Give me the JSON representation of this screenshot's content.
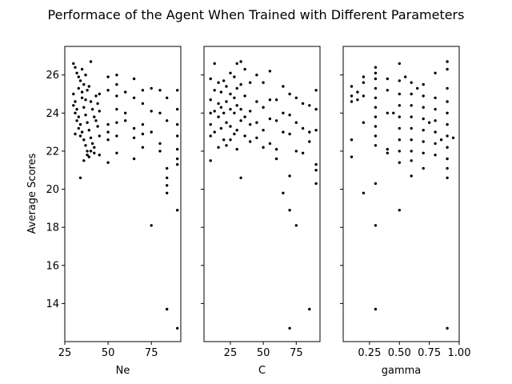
{
  "figure": {
    "title": "Performace of the Agent When Trained with Different Parameters"
  },
  "chart_data": {
    "type": "scatter",
    "title": "Performace of the Agent When Trained with Different Parameters",
    "ylabel": "Average Scores",
    "ylim": [
      12,
      27.5
    ],
    "yticks": [
      14,
      16,
      18,
      20,
      22,
      24,
      26
    ],
    "shared_y": true,
    "marker_color": "#000000",
    "panels": [
      {
        "xlabel": "Ne",
        "xlim": [
          25,
          92
        ],
        "xticks": [
          25,
          50,
          75
        ],
        "points": [
          [
            30,
            26.6
          ],
          [
            31,
            26.4
          ],
          [
            32,
            26.1
          ],
          [
            33,
            25.9
          ],
          [
            34,
            25.7
          ],
          [
            35,
            26.3
          ],
          [
            36,
            25.5
          ],
          [
            37,
            26.0
          ],
          [
            38,
            25.2
          ],
          [
            40,
            26.7
          ],
          [
            30,
            25.0
          ],
          [
            31,
            24.6
          ],
          [
            32,
            24.2
          ],
          [
            33,
            23.8
          ],
          [
            34,
            23.4
          ],
          [
            35,
            23.0
          ],
          [
            36,
            22.6
          ],
          [
            37,
            22.3
          ],
          [
            38,
            22.0
          ],
          [
            39,
            21.7
          ],
          [
            30,
            24.4
          ],
          [
            31,
            24.0
          ],
          [
            32,
            23.6
          ],
          [
            33,
            23.2
          ],
          [
            34,
            22.8
          ],
          [
            35,
            24.8
          ],
          [
            36,
            24.3
          ],
          [
            37,
            23.9
          ],
          [
            38,
            23.5
          ],
          [
            39,
            23.1
          ],
          [
            40,
            24.6
          ],
          [
            41,
            24.2
          ],
          [
            42,
            23.8
          ],
          [
            43,
            24.9
          ],
          [
            44,
            24.5
          ],
          [
            40,
            22.7
          ],
          [
            41,
            22.4
          ],
          [
            42,
            22.2
          ],
          [
            43,
            23.6
          ],
          [
            44,
            23.3
          ],
          [
            31,
            22.9
          ],
          [
            33,
            25.3
          ],
          [
            35,
            25.1
          ],
          [
            37,
            24.7
          ],
          [
            39,
            25.4
          ],
          [
            34,
            20.6
          ],
          [
            36,
            21.5
          ],
          [
            38,
            21.8
          ],
          [
            40,
            22.0
          ],
          [
            42,
            21.9
          ],
          [
            45,
            25.0
          ],
          [
            45,
            24.1
          ],
          [
            45,
            22.8
          ],
          [
            45,
            21.8
          ],
          [
            50,
            25.9
          ],
          [
            50,
            25.2
          ],
          [
            50,
            23.4
          ],
          [
            50,
            23.0
          ],
          [
            50,
            22.6
          ],
          [
            50,
            21.4
          ],
          [
            55,
            26.0
          ],
          [
            55,
            25.5
          ],
          [
            55,
            24.9
          ],
          [
            55,
            24.2
          ],
          [
            55,
            23.5
          ],
          [
            55,
            22.8
          ],
          [
            55,
            21.9
          ],
          [
            60,
            25.1
          ],
          [
            60,
            24.0
          ],
          [
            60,
            23.6
          ],
          [
            65,
            25.8
          ],
          [
            65,
            24.8
          ],
          [
            65,
            23.2
          ],
          [
            65,
            22.7
          ],
          [
            65,
            21.6
          ],
          [
            70,
            25.2
          ],
          [
            70,
            24.5
          ],
          [
            70,
            23.4
          ],
          [
            70,
            22.9
          ],
          [
            70,
            22.2
          ],
          [
            75,
            25.3
          ],
          [
            75,
            24.1
          ],
          [
            75,
            23.0
          ],
          [
            75,
            18.1
          ],
          [
            80,
            25.2
          ],
          [
            80,
            24.0
          ],
          [
            80,
            22.4
          ],
          [
            80,
            22.0
          ],
          [
            84,
            24.8
          ],
          [
            84,
            23.6
          ],
          [
            84,
            21.1
          ],
          [
            84,
            20.6
          ],
          [
            84,
            20.2
          ],
          [
            84,
            19.8
          ],
          [
            84,
            13.7
          ],
          [
            90,
            25.2
          ],
          [
            90,
            24.2
          ],
          [
            90,
            23.4
          ],
          [
            90,
            22.8
          ],
          [
            90,
            22.1
          ],
          [
            90,
            21.6
          ],
          [
            90,
            21.3
          ],
          [
            90,
            18.9
          ],
          [
            90,
            12.7
          ]
        ]
      },
      {
        "xlabel": "C",
        "xlim": [
          5,
          93
        ],
        "xticks": [
          25,
          50,
          75
        ],
        "points": [
          [
            10,
            25.8
          ],
          [
            10,
            24.7
          ],
          [
            10,
            24.0
          ],
          [
            10,
            23.4
          ],
          [
            10,
            22.8
          ],
          [
            10,
            21.5
          ],
          [
            13,
            26.6
          ],
          [
            13,
            25.2
          ],
          [
            13,
            24.1
          ],
          [
            13,
            23.0
          ],
          [
            16,
            25.6
          ],
          [
            16,
            24.5
          ],
          [
            16,
            23.8
          ],
          [
            16,
            22.2
          ],
          [
            18,
            25.1
          ],
          [
            18,
            24.3
          ],
          [
            18,
            23.2
          ],
          [
            20,
            25.7
          ],
          [
            20,
            24.0
          ],
          [
            20,
            22.6
          ],
          [
            22,
            25.4
          ],
          [
            22,
            24.6
          ],
          [
            22,
            23.5
          ],
          [
            22,
            22.3
          ],
          [
            25,
            26.1
          ],
          [
            25,
            25.0
          ],
          [
            25,
            24.2
          ],
          [
            25,
            23.3
          ],
          [
            25,
            22.6
          ],
          [
            28,
            25.9
          ],
          [
            28,
            24.8
          ],
          [
            28,
            24.0
          ],
          [
            28,
            22.9
          ],
          [
            30,
            26.6
          ],
          [
            30,
            25.3
          ],
          [
            30,
            24.4
          ],
          [
            30,
            23.1
          ],
          [
            30,
            22.1
          ],
          [
            33,
            26.7
          ],
          [
            33,
            25.5
          ],
          [
            33,
            24.2
          ],
          [
            33,
            23.6
          ],
          [
            33,
            20.6
          ],
          [
            36,
            26.3
          ],
          [
            36,
            24.9
          ],
          [
            36,
            23.8
          ],
          [
            36,
            22.8
          ],
          [
            40,
            25.6
          ],
          [
            40,
            24.1
          ],
          [
            40,
            23.4
          ],
          [
            40,
            22.5
          ],
          [
            45,
            26.0
          ],
          [
            45,
            24.6
          ],
          [
            45,
            23.5
          ],
          [
            45,
            22.7
          ],
          [
            50,
            25.6
          ],
          [
            50,
            24.3
          ],
          [
            50,
            23.1
          ],
          [
            50,
            22.2
          ],
          [
            55,
            26.2
          ],
          [
            55,
            24.7
          ],
          [
            55,
            23.7
          ],
          [
            55,
            22.4
          ],
          [
            60,
            24.7
          ],
          [
            60,
            23.6
          ],
          [
            60,
            22.1
          ],
          [
            60,
            21.6
          ],
          [
            65,
            25.4
          ],
          [
            65,
            24.0
          ],
          [
            65,
            23.0
          ],
          [
            65,
            19.8
          ],
          [
            70,
            25.0
          ],
          [
            70,
            23.9
          ],
          [
            70,
            22.9
          ],
          [
            70,
            20.7
          ],
          [
            70,
            18.9
          ],
          [
            70,
            12.7
          ],
          [
            75,
            24.8
          ],
          [
            75,
            23.5
          ],
          [
            75,
            22.0
          ],
          [
            75,
            18.1
          ],
          [
            80,
            24.5
          ],
          [
            80,
            23.2
          ],
          [
            80,
            21.9
          ],
          [
            85,
            24.4
          ],
          [
            85,
            23.0
          ],
          [
            85,
            22.5
          ],
          [
            85,
            13.7
          ],
          [
            90,
            25.2
          ],
          [
            90,
            24.2
          ],
          [
            90,
            23.1
          ],
          [
            90,
            21.3
          ],
          [
            90,
            21.0
          ],
          [
            90,
            20.3
          ]
        ]
      },
      {
        "xlabel": "gamma",
        "xlim": [
          0.03,
          1.0
        ],
        "xticks": [
          0.25,
          0.5,
          0.75,
          1.0
        ],
        "points": [
          [
            0.1,
            25.4
          ],
          [
            0.1,
            24.9
          ],
          [
            0.1,
            24.6
          ],
          [
            0.1,
            22.6
          ],
          [
            0.1,
            21.7
          ],
          [
            0.15,
            25.1
          ],
          [
            0.15,
            24.7
          ],
          [
            0.2,
            25.9
          ],
          [
            0.2,
            25.6
          ],
          [
            0.2,
            24.9
          ],
          [
            0.2,
            23.5
          ],
          [
            0.2,
            19.8
          ],
          [
            0.3,
            26.4
          ],
          [
            0.3,
            26.1
          ],
          [
            0.3,
            25.8
          ],
          [
            0.3,
            25.3
          ],
          [
            0.3,
            24.8
          ],
          [
            0.3,
            24.3
          ],
          [
            0.3,
            23.8
          ],
          [
            0.3,
            23.3
          ],
          [
            0.3,
            22.8
          ],
          [
            0.3,
            22.3
          ],
          [
            0.3,
            20.3
          ],
          [
            0.3,
            18.1
          ],
          [
            0.3,
            13.7
          ],
          [
            0.4,
            25.8
          ],
          [
            0.4,
            25.2
          ],
          [
            0.4,
            24.0
          ],
          [
            0.4,
            22.1
          ],
          [
            0.4,
            21.9
          ],
          [
            0.45,
            24.0
          ],
          [
            0.5,
            26.6
          ],
          [
            0.5,
            25.7
          ],
          [
            0.5,
            25.0
          ],
          [
            0.5,
            24.4
          ],
          [
            0.5,
            23.8
          ],
          [
            0.5,
            23.2
          ],
          [
            0.5,
            22.6
          ],
          [
            0.5,
            22.0
          ],
          [
            0.5,
            21.4
          ],
          [
            0.5,
            18.9
          ],
          [
            0.55,
            25.9
          ],
          [
            0.6,
            25.6
          ],
          [
            0.6,
            25.0
          ],
          [
            0.6,
            24.4
          ],
          [
            0.6,
            23.8
          ],
          [
            0.6,
            23.2
          ],
          [
            0.6,
            22.6
          ],
          [
            0.6,
            22.0
          ],
          [
            0.6,
            21.5
          ],
          [
            0.6,
            20.7
          ],
          [
            0.65,
            25.3
          ],
          [
            0.7,
            25.5
          ],
          [
            0.7,
            24.9
          ],
          [
            0.7,
            24.3
          ],
          [
            0.7,
            23.7
          ],
          [
            0.7,
            23.1
          ],
          [
            0.7,
            22.5
          ],
          [
            0.7,
            21.9
          ],
          [
            0.7,
            21.1
          ],
          [
            0.75,
            23.5
          ],
          [
            0.8,
            26.1
          ],
          [
            0.8,
            24.8
          ],
          [
            0.8,
            24.2
          ],
          [
            0.8,
            23.6
          ],
          [
            0.8,
            23.0
          ],
          [
            0.8,
            22.4
          ],
          [
            0.8,
            21.8
          ],
          [
            0.85,
            22.6
          ],
          [
            0.9,
            26.7
          ],
          [
            0.9,
            26.3
          ],
          [
            0.9,
            25.3
          ],
          [
            0.9,
            24.6
          ],
          [
            0.9,
            24.0
          ],
          [
            0.9,
            23.4
          ],
          [
            0.9,
            22.8
          ],
          [
            0.9,
            22.2
          ],
          [
            0.9,
            21.6
          ],
          [
            0.9,
            21.1
          ],
          [
            0.9,
            20.6
          ],
          [
            0.9,
            12.7
          ],
          [
            0.95,
            22.7
          ]
        ]
      }
    ]
  }
}
